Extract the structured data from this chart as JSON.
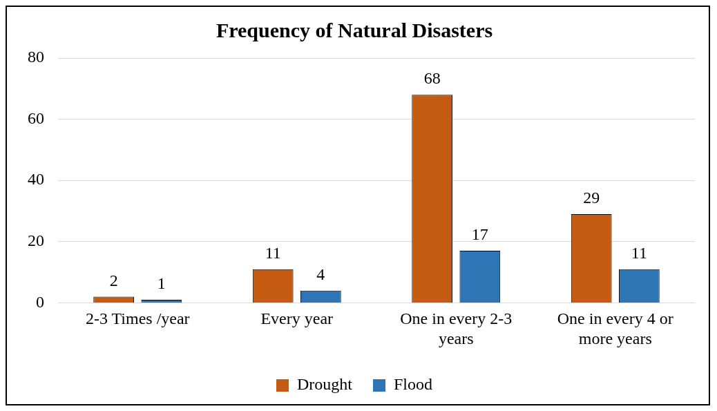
{
  "chart_data": {
    "type": "bar",
    "title": "Frequency of Natural Disasters",
    "categories": [
      "2-3 Times /year",
      "Every year",
      "One in every 2-3 years",
      "One in every 4 or more years"
    ],
    "series": [
      {
        "name": "Drought",
        "color": "#c55a11",
        "values": [
          2,
          11,
          68,
          29
        ]
      },
      {
        "name": "Flood",
        "color": "#2e75b6",
        "values": [
          1,
          4,
          17,
          11
        ]
      }
    ],
    "ylim": [
      0,
      80
    ],
    "yticks": [
      0,
      20,
      40,
      60,
      80
    ],
    "grid": "y",
    "legend": "bottom",
    "data_labels": true
  }
}
